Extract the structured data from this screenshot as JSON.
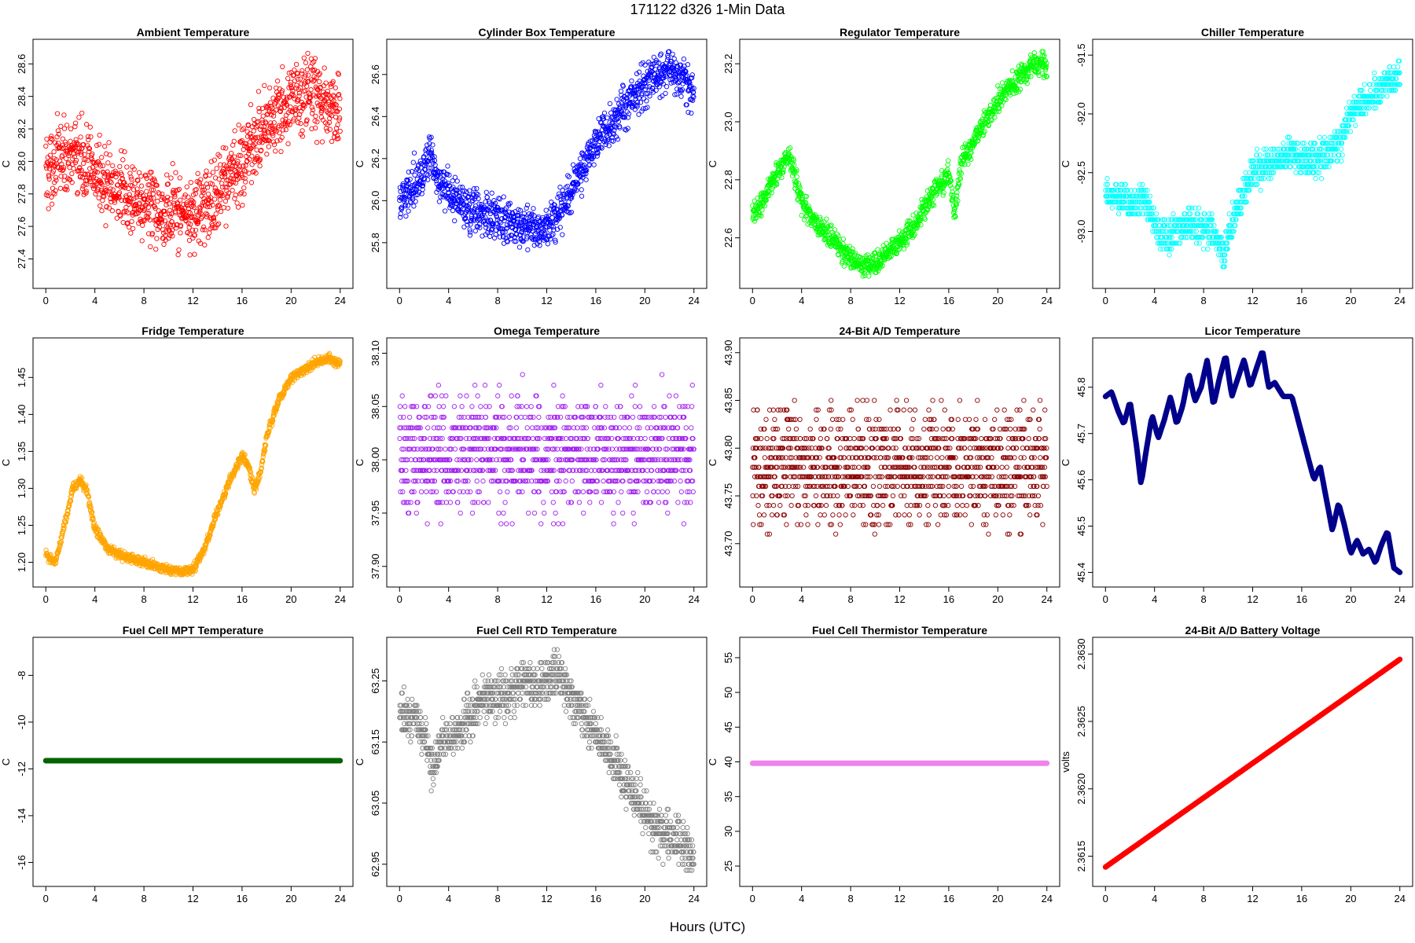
{
  "page_title": "171122   d326   1-Min Data",
  "x_axis_label": "Hours (UTC)",
  "chart_data": [
    {
      "type": "scatter",
      "title": "Ambient Temperature",
      "ylabel": "C",
      "color": "#ff0000",
      "xlim": [
        0,
        24
      ],
      "ylim": [
        27.28,
        28.69
      ],
      "xticks": [
        "0",
        "4",
        "8",
        "12",
        "16",
        "20",
        "24"
      ],
      "yticks": [
        "27.4",
        "27.6",
        "27.8",
        "28.0",
        "28.2",
        "28.4",
        "28.6"
      ],
      "x": [
        0,
        1,
        2,
        3,
        4,
        5,
        6,
        7,
        8,
        9,
        10,
        11,
        12,
        13,
        14,
        15,
        16,
        17,
        18,
        19,
        20,
        21,
        22,
        23,
        24
      ],
      "y": [
        27.95,
        28.0,
        28.05,
        28.0,
        27.92,
        27.85,
        27.8,
        27.77,
        27.75,
        27.72,
        27.7,
        27.68,
        27.67,
        27.72,
        27.8,
        27.9,
        28.0,
        28.1,
        28.22,
        28.3,
        28.35,
        28.42,
        28.4,
        28.35,
        28.3
      ],
      "noise": 0.11,
      "jitter": 0.25
    },
    {
      "type": "scatter",
      "title": "Cylinder Box Temperature",
      "ylabel": "C",
      "color": "#0000ff",
      "xlim": [
        0,
        24
      ],
      "ylim": [
        25.63,
        26.72
      ],
      "xticks": [
        "0",
        "4",
        "8",
        "12",
        "16",
        "20",
        "24"
      ],
      "yticks": [
        "25.8",
        "26.0",
        "26.2",
        "26.4",
        "26.6"
      ],
      "x": [
        0,
        1,
        2,
        2.5,
        3,
        4,
        5,
        6,
        7,
        8,
        9,
        10,
        11,
        12,
        13,
        14,
        15,
        16,
        17,
        18,
        19,
        20,
        21,
        22,
        23,
        24
      ],
      "y": [
        25.98,
        26.08,
        26.15,
        26.2,
        26.12,
        26.05,
        25.97,
        25.95,
        25.93,
        25.92,
        25.9,
        25.88,
        25.87,
        25.88,
        25.95,
        26.05,
        26.15,
        26.28,
        26.35,
        26.42,
        26.5,
        26.55,
        26.6,
        26.62,
        26.6,
        26.52
      ],
      "noise": 0.05,
      "jitter": 0.15
    },
    {
      "type": "scatter",
      "title": "Regulator Temperature",
      "ylabel": "C",
      "color": "#00ff00",
      "xlim": [
        0,
        24
      ],
      "ylim": [
        22.46,
        23.25
      ],
      "xticks": [
        "0",
        "4",
        "8",
        "12",
        "16",
        "20",
        "24"
      ],
      "yticks": [
        "22.6",
        "22.8",
        "23.0",
        "23.2"
      ],
      "x": [
        0,
        1,
        2,
        3,
        4,
        5,
        6,
        7,
        8,
        9,
        10,
        11,
        12,
        13,
        14,
        15,
        16,
        16.5,
        17,
        18,
        19,
        20,
        21,
        22,
        23,
        24
      ],
      "y": [
        22.68,
        22.74,
        22.83,
        22.88,
        22.72,
        22.66,
        22.62,
        22.57,
        22.53,
        22.5,
        22.51,
        22.55,
        22.58,
        22.63,
        22.7,
        22.77,
        22.82,
        22.68,
        22.85,
        22.93,
        23.0,
        23.08,
        23.12,
        23.16,
        23.2,
        23.2
      ],
      "noise": 0.02,
      "jitter": 0.1
    },
    {
      "type": "scatter",
      "title": "Chiller Temperature",
      "ylabel": "C",
      "color": "#00ffff",
      "xlim": [
        0,
        24
      ],
      "ylim": [
        -93.4,
        -91.45
      ],
      "xticks": [
        "0",
        "4",
        "8",
        "12",
        "16",
        "20",
        "24"
      ],
      "yticks": [
        "-93.0",
        "-92.5",
        "-92.0",
        "-91.5"
      ],
      "x": [
        0,
        1,
        2,
        3,
        4,
        5,
        6,
        7,
        8,
        9,
        9.7,
        10,
        11,
        12,
        13,
        14,
        15,
        16,
        17,
        18,
        19,
        20,
        21,
        22,
        23,
        24
      ],
      "y": [
        -92.7,
        -92.7,
        -92.75,
        -92.7,
        -92.95,
        -93.05,
        -92.95,
        -92.95,
        -93.0,
        -93.0,
        -93.25,
        -93.0,
        -92.75,
        -92.5,
        -92.45,
        -92.4,
        -92.35,
        -92.4,
        -92.4,
        -92.35,
        -92.25,
        -92.0,
        -91.9,
        -91.8,
        -91.72,
        -91.7
      ],
      "noise": 0.07,
      "jitter": 0.1,
      "step": 0.05
    },
    {
      "type": "scatter",
      "title": "Fridge Temperature",
      "ylabel": "C",
      "color": "#ffa500",
      "xlim": [
        0,
        24
      ],
      "ylim": [
        1.18,
        1.49
      ],
      "xticks": [
        "0",
        "4",
        "8",
        "12",
        "16",
        "20",
        "24"
      ],
      "yticks": [
        "1.20",
        "1.25",
        "1.30",
        "1.35",
        "1.40",
        "1.45"
      ],
      "x": [
        0,
        0.8,
        1.5,
        2.2,
        2.8,
        3.3,
        4,
        5,
        6,
        7,
        8,
        9,
        10,
        11,
        12,
        13,
        14,
        15,
        16,
        16.5,
        17,
        17.5,
        18,
        19,
        20,
        21,
        22,
        23,
        24
      ],
      "y": [
        1.21,
        1.2,
        1.25,
        1.3,
        1.31,
        1.3,
        1.245,
        1.22,
        1.21,
        1.205,
        1.2,
        1.195,
        1.19,
        1.188,
        1.19,
        1.22,
        1.27,
        1.31,
        1.345,
        1.33,
        1.3,
        1.32,
        1.37,
        1.42,
        1.45,
        1.46,
        1.47,
        1.475,
        1.47
      ],
      "noise": 0.003,
      "jitter": 0.1
    },
    {
      "type": "scatter",
      "title": "Omega Temperature",
      "ylabel": "C",
      "color": "#a020f0",
      "xlim": [
        0,
        24
      ],
      "ylim": [
        37.89,
        38.105
      ],
      "xticks": [
        "0",
        "4",
        "8",
        "12",
        "16",
        "20",
        "24"
      ],
      "yticks": [
        "37.90",
        "37.95",
        "38.00",
        "38.05",
        "38.10"
      ],
      "x": [
        0,
        24
      ],
      "y": [
        38.005,
        38.005
      ],
      "noise": 0.027,
      "jitter": 0,
      "step": 0.01
    },
    {
      "type": "scatter",
      "title": "24-Bit A/D Temperature",
      "ylabel": "C",
      "color": "#8b0000",
      "xlim": [
        0,
        24
      ],
      "ylim": [
        43.665,
        43.905
      ],
      "xticks": [
        "0",
        "4",
        "8",
        "12",
        "16",
        "20",
        "24"
      ],
      "yticks": [
        "43.70",
        "43.75",
        "43.80",
        "43.85",
        "43.90"
      ],
      "x": [
        0,
        24
      ],
      "y": [
        43.78,
        43.78
      ],
      "noise": 0.03,
      "jitter": 0,
      "step": 0.01
    },
    {
      "type": "line",
      "title": "Licor Temperature",
      "ylabel": "C",
      "color": "#00008b",
      "xlim": [
        0,
        24
      ],
      "ylim": [
        45.39,
        45.885
      ],
      "xticks": [
        "0",
        "4",
        "8",
        "12",
        "16",
        "20",
        "24"
      ],
      "yticks": [
        "45.4",
        "45.5",
        "45.6",
        "45.7",
        "45.8"
      ],
      "x": [
        0,
        0.5,
        1,
        1.5,
        2,
        2.5,
        2.9,
        3.3,
        3.8,
        4.3,
        4.8,
        5.3,
        5.8,
        6.3,
        6.8,
        7.3,
        7.8,
        8.3,
        8.8,
        9.3,
        9.8,
        10.3,
        10.8,
        11.3,
        11.8,
        12.3,
        12.8,
        13.3,
        13.8,
        14.5,
        15.2,
        16,
        16.5,
        17,
        17.5,
        18,
        18.5,
        19,
        19.5,
        20,
        20.5,
        21,
        21.5,
        22,
        22.5,
        23,
        23.5,
        24
      ],
      "y": [
        45.78,
        45.79,
        45.75,
        45.72,
        45.77,
        45.68,
        45.59,
        45.66,
        45.74,
        45.69,
        45.73,
        45.78,
        45.72,
        45.76,
        45.83,
        45.77,
        45.8,
        45.86,
        45.76,
        45.82,
        45.87,
        45.78,
        45.82,
        45.86,
        45.8,
        45.84,
        45.88,
        45.8,
        45.81,
        45.78,
        45.78,
        45.7,
        45.65,
        45.6,
        45.63,
        45.56,
        45.49,
        45.55,
        45.5,
        45.44,
        45.47,
        45.44,
        45.45,
        45.42,
        45.46,
        45.49,
        45.41,
        45.4
      ],
      "noise": 0,
      "jitter": 0
    },
    {
      "type": "line",
      "title": "Fuel Cell MPT Temperature",
      "ylabel": "C",
      "color": "#006400",
      "xlim": [
        0,
        24
      ],
      "ylim": [
        -16.6,
        -6.8
      ],
      "xticks": [
        "0",
        "4",
        "8",
        "12",
        "16",
        "20",
        "24"
      ],
      "yticks": [
        "-16",
        "-14",
        "-12",
        "-10",
        "-8"
      ],
      "x": [
        0,
        24
      ],
      "y": [
        -11.65,
        -11.65
      ],
      "noise": 0,
      "jitter": 0
    },
    {
      "type": "scatter",
      "title": "Fuel Cell RTD Temperature",
      "ylabel": "C",
      "color": "#808080",
      "xlim": [
        0,
        24
      ],
      "ylim": [
        62.93,
        63.305
      ],
      "xticks": [
        "0",
        "4",
        "8",
        "12",
        "16",
        "20",
        "24"
      ],
      "yticks": [
        "62.95",
        "63.05",
        "63.15",
        "63.25"
      ],
      "x": [
        0,
        0.8,
        1.5,
        2.2,
        2.7,
        3.0,
        3.5,
        4.2,
        5,
        6,
        7,
        8,
        9,
        10,
        11,
        12,
        12.8,
        13.5,
        14.5,
        15.5,
        16.5,
        17.5,
        18.5,
        19.5,
        20.5,
        21.5,
        22.5,
        23.5,
        24
      ],
      "y": [
        63.2,
        63.19,
        63.18,
        63.15,
        63.1,
        63.12,
        63.16,
        63.15,
        63.17,
        63.2,
        63.23,
        63.22,
        63.23,
        63.25,
        63.24,
        63.25,
        63.27,
        63.24,
        63.21,
        63.18,
        63.15,
        63.12,
        63.08,
        63.05,
        63.02,
        63.0,
        62.99,
        62.98,
        62.96
      ],
      "noise": 0.018,
      "jitter": 0.12,
      "step": 0.01
    },
    {
      "type": "line",
      "title": "Fuel Cell Thermistor Temperature",
      "ylabel": "C",
      "color": "#ee82ee",
      "xlim": [
        0,
        24
      ],
      "ylim": [
        23.5,
        56.5
      ],
      "xticks": [
        "0",
        "4",
        "8",
        "12",
        "16",
        "20",
        "24"
      ],
      "yticks": [
        "25",
        "30",
        "35",
        "40",
        "45",
        "50",
        "55"
      ],
      "x": [
        0,
        24
      ],
      "y": [
        39.8,
        39.8
      ],
      "noise": 0,
      "jitter": 0
    },
    {
      "type": "line",
      "title": "24-Bit A/D Battery Voltage",
      "ylabel": "volts",
      "color": "#ff0000",
      "xlim": [
        0,
        24
      ],
      "ylim": [
        2.36135,
        2.36305
      ],
      "xticks": [
        "0",
        "4",
        "8",
        "12",
        "16",
        "20",
        "24"
      ],
      "yticks": [
        "2.3615",
        "2.3620",
        "2.3625",
        "2.3630"
      ],
      "x": [
        0,
        24
      ],
      "y": [
        2.36142,
        2.36296
      ],
      "noise": 0,
      "jitter": 0
    }
  ]
}
